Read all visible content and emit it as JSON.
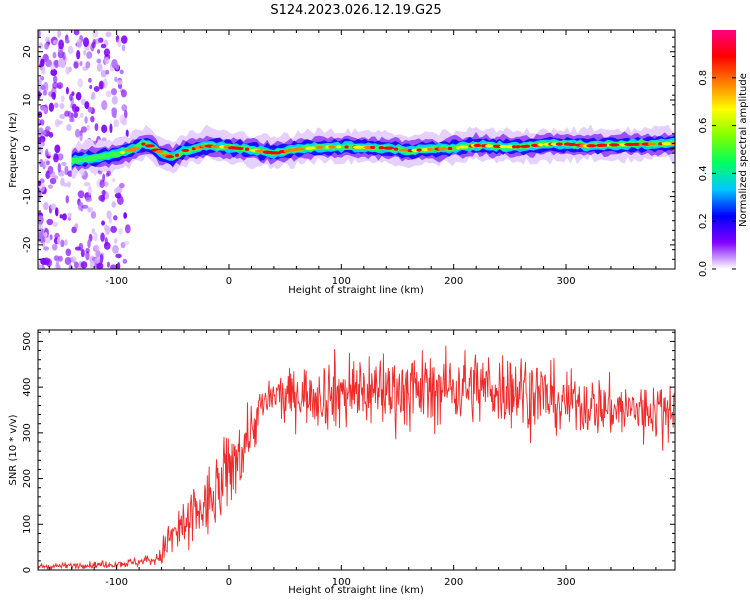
{
  "title": "S124.2023.026.12.19.G25",
  "chart_data": [
    {
      "type": "heatmap",
      "xlabel": "Height of straight line (km)",
      "ylabel": "Frequency (Hz)",
      "xlim": [
        -170,
        397
      ],
      "ylim": [
        -25,
        24.5
      ],
      "xticks": [
        -100,
        0,
        100,
        200,
        300
      ],
      "yticks": [
        -20,
        -10,
        0,
        10,
        20
      ],
      "colorbar": {
        "label": "Normalized spectral amplitude",
        "range": [
          0,
          1
        ],
        "ticks": [
          0.0,
          0.2,
          0.4,
          0.6,
          0.8
        ],
        "tick_labels": [
          "0.0",
          "0.2",
          "0.4",
          "0.6",
          "0.8"
        ],
        "colormap": [
          "#ffffff",
          "#8000ff",
          "#0000ff",
          "#00c8ff",
          "#00ff60",
          "#80ff00",
          "#ffff00",
          "#ff8000",
          "#ff0000",
          "#ff0080"
        ]
      },
      "noise_region_x": [
        -170,
        -90
      ],
      "ridge": {
        "x": [
          -140,
          -120,
          -100,
          -85,
          -78,
          -70,
          -60,
          -50,
          -40,
          -20,
          0,
          20,
          40,
          60,
          80,
          100,
          120,
          140,
          160,
          180,
          200,
          220,
          240,
          260,
          280,
          300,
          320,
          340,
          360,
          380,
          397
        ],
        "freq": [
          -2.5,
          -2.0,
          -1.2,
          -0.2,
          1.0,
          0.5,
          -1.0,
          -2.0,
          -0.5,
          0.5,
          0.2,
          -0.3,
          -1.0,
          -0.2,
          0.2,
          0.3,
          0.2,
          0.1,
          -0.5,
          -0.2,
          0.0,
          0.6,
          0.4,
          0.3,
          0.8,
          0.9,
          0.5,
          0.7,
          0.8,
          0.9,
          1.0
        ]
      }
    },
    {
      "type": "line",
      "xlabel": "Height of straight line (km)",
      "ylabel": "SNR (10 * v/v)",
      "xlim": [
        -170,
        397
      ],
      "ylim": [
        0,
        525
      ],
      "xticks": [
        -100,
        0,
        100,
        200,
        300
      ],
      "yticks": [
        0,
        100,
        200,
        300,
        400,
        500
      ],
      "color": "#ee2a2a",
      "series": [
        {
          "x": [
            -170,
            -140,
            -110,
            -90,
            -75,
            -62,
            -55,
            -45,
            -35,
            -20,
            -10,
            0,
            10,
            20,
            30,
            40,
            60,
            80,
            100,
            130,
            160,
            200,
            230,
            260,
            290,
            320,
            350,
            380,
            397
          ],
          "mean": [
            8,
            10,
            12,
            15,
            20,
            25,
            60,
            85,
            110,
            140,
            170,
            215,
            260,
            310,
            360,
            380,
            385,
            385,
            390,
            395,
            395,
            400,
            400,
            395,
            375,
            360,
            350,
            350,
            370
          ],
          "spread": [
            4,
            4,
            5,
            6,
            8,
            10,
            30,
            40,
            45,
            50,
            55,
            55,
            50,
            40,
            30,
            30,
            35,
            45,
            55,
            55,
            50,
            50,
            50,
            55,
            45,
            40,
            40,
            40,
            40
          ]
        }
      ]
    }
  ]
}
